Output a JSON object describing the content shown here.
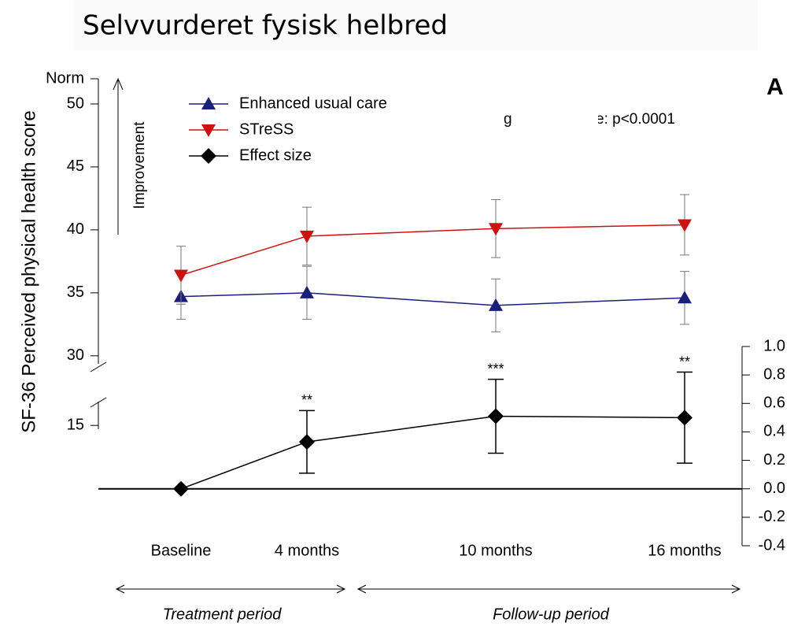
{
  "chart_data": {
    "type": "line",
    "title": "Selvvurderet fysisk helbred",
    "panel_label": "A",
    "y_label": "SF-36 Perceived physical health score",
    "improvement_label": "Improvement",
    "annotations": [
      "g",
      "e: p<0.0001"
    ],
    "periods": [
      "Treatment period",
      "Follow-up period"
    ],
    "x": [
      0,
      4,
      10,
      16
    ],
    "xlim": [
      -2.625,
      17.825
    ],
    "xticks": [
      {
        "value": 0,
        "label": "Baseline"
      },
      {
        "value": 4,
        "label": "4 months"
      },
      {
        "value": 10,
        "label": "10 months"
      },
      {
        "value": 16,
        "label": "16 months"
      }
    ],
    "ylim": [
      29.8,
      52
    ],
    "yticks": [
      {
        "value": 52,
        "label": "Norm"
      },
      50,
      45,
      40,
      35,
      30
    ],
    "ylim_lower": [
      14.7,
      17
    ],
    "yticks_lower": [
      15
    ],
    "y2lim": [
      -0.4,
      1.0
    ],
    "y2ticks": [
      {
        "value": 1.0,
        "label": "1.0"
      },
      0.8,
      0.6,
      0.4,
      0.2,
      {
        "value": 0.0,
        "label": "0.0"
      },
      -0.2,
      -0.4
    ],
    "series": [
      {
        "name": "Enhanced usual care",
        "color": "#1c1f7a",
        "marker": "triangle-up",
        "values": [
          34.7,
          35.0,
          34.0,
          34.6
        ],
        "errors": [
          1.8,
          2.1,
          2.1,
          2.1
        ]
      },
      {
        "name": "STreSS",
        "color": "#cc1111",
        "marker": "triangle-down",
        "values": [
          36.4,
          39.5,
          40.1,
          40.4
        ],
        "errors": [
          2.3,
          2.3,
          2.3,
          2.4
        ]
      },
      {
        "name": "Effect size",
        "color": "#000000",
        "marker": "diamond",
        "axis": "y2",
        "values": [
          0,
          0.33,
          0.51,
          0.5
        ],
        "errors": [
          null,
          0.22,
          0.26,
          0.32
        ],
        "significance": [
          null,
          "**",
          "***",
          "**"
        ]
      }
    ]
  }
}
